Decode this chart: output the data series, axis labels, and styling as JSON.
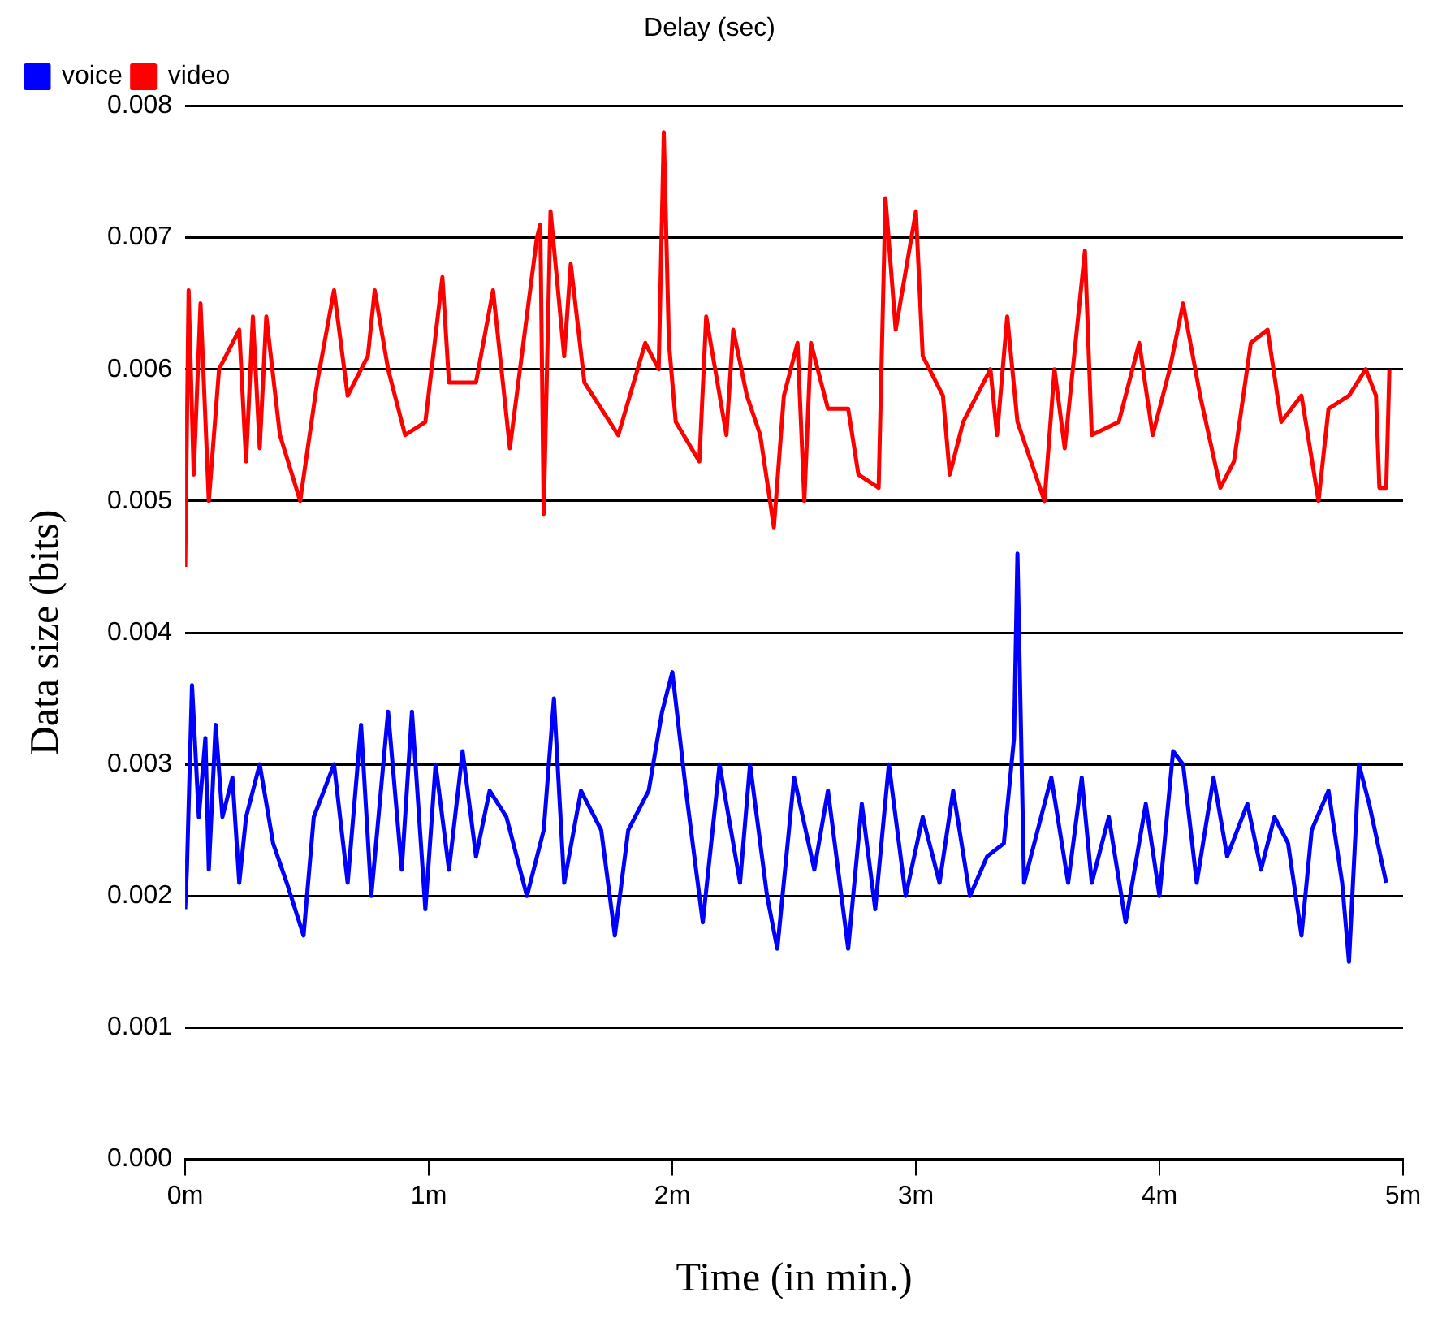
{
  "chart_data": {
    "type": "line",
    "title": "Delay (sec)",
    "xlabel": "Time (in min.)",
    "ylabel": "Data size (bits)",
    "xlim": [
      0,
      5
    ],
    "xticks": [
      {
        "value": 0,
        "label": "0m"
      },
      {
        "value": 1,
        "label": "1m"
      },
      {
        "value": 2,
        "label": "2m"
      },
      {
        "value": 3,
        "label": "3m"
      },
      {
        "value": 4,
        "label": "4m"
      },
      {
        "value": 5,
        "label": "5m"
      }
    ],
    "ylim": [
      0,
      0.008
    ],
    "yticks": [
      {
        "value": 0,
        "label": "0.000"
      },
      {
        "value": 0.001,
        "label": "0.001"
      },
      {
        "value": 0.002,
        "label": "0.002"
      },
      {
        "value": 0.003,
        "label": "0.003"
      },
      {
        "value": 0.004,
        "label": "0.004"
      },
      {
        "value": 0.005,
        "label": "0.005"
      },
      {
        "value": 0.006,
        "label": "0.006"
      },
      {
        "value": 0.007,
        "label": "0.007"
      },
      {
        "value": 0.008,
        "label": "0.008"
      }
    ],
    "grid": "y",
    "legend": "top left",
    "series": [
      {
        "name": "voice",
        "color": "#0000ff",
        "x": [
          0,
          0.007,
          0.028,
          0.056,
          0.083,
          0.097,
          0.125,
          0.153,
          0.194,
          0.222,
          0.25,
          0.306,
          0.361,
          0.417,
          0.486,
          0.528,
          0.611,
          0.667,
          0.722,
          0.764,
          0.833,
          0.889,
          0.931,
          0.986,
          1.028,
          1.083,
          1.139,
          1.194,
          1.25,
          1.319,
          1.403,
          1.472,
          1.514,
          1.556,
          1.625,
          1.708,
          1.764,
          1.819,
          1.903,
          1.958,
          2.0,
          2.056,
          2.125,
          2.194,
          2.278,
          2.319,
          2.389,
          2.431,
          2.5,
          2.583,
          2.639,
          2.722,
          2.778,
          2.833,
          2.889,
          2.958,
          3.028,
          3.097,
          3.153,
          3.222,
          3.292,
          3.361,
          3.403,
          3.417,
          3.444,
          3.5,
          3.556,
          3.625,
          3.681,
          3.722,
          3.792,
          3.861,
          3.944,
          4.0,
          4.056,
          4.097,
          4.153,
          4.222,
          4.278,
          4.361,
          4.417,
          4.472,
          4.528,
          4.583,
          4.625,
          4.694,
          4.75,
          4.778,
          4.819,
          4.861,
          4.931
        ],
        "values": [
          0.0019,
          0.0022,
          0.0036,
          0.0026,
          0.0032,
          0.0022,
          0.0033,
          0.0026,
          0.0029,
          0.0021,
          0.0026,
          0.003,
          0.0024,
          0.0021,
          0.0017,
          0.0026,
          0.003,
          0.0021,
          0.0033,
          0.002,
          0.0034,
          0.0022,
          0.0034,
          0.0019,
          0.003,
          0.0022,
          0.0031,
          0.0023,
          0.0028,
          0.0026,
          0.002,
          0.0025,
          0.0035,
          0.0021,
          0.0028,
          0.0025,
          0.0017,
          0.0025,
          0.0028,
          0.0034,
          0.0037,
          0.0028,
          0.0018,
          0.003,
          0.0021,
          0.003,
          0.002,
          0.0016,
          0.0029,
          0.0022,
          0.0028,
          0.0016,
          0.0027,
          0.0019,
          0.003,
          0.002,
          0.0026,
          0.0021,
          0.0028,
          0.002,
          0.0023,
          0.0024,
          0.0032,
          0.0046,
          0.0021,
          0.0025,
          0.0029,
          0.0021,
          0.0029,
          0.0021,
          0.0026,
          0.0018,
          0.0027,
          0.002,
          0.0031,
          0.003,
          0.0021,
          0.0029,
          0.0023,
          0.0027,
          0.0022,
          0.0026,
          0.0024,
          0.0017,
          0.0025,
          0.0028,
          0.0021,
          0.0015,
          0.003,
          0.0027,
          0.0021
        ]
      },
      {
        "name": "video",
        "color": "#ff0000",
        "x": [
          0,
          0.014,
          0.035,
          0.063,
          0.097,
          0.139,
          0.222,
          0.25,
          0.278,
          0.306,
          0.333,
          0.389,
          0.472,
          0.542,
          0.611,
          0.667,
          0.75,
          0.778,
          0.833,
          0.903,
          0.986,
          1.056,
          1.083,
          1.194,
          1.264,
          1.333,
          1.444,
          1.458,
          1.472,
          1.5,
          1.556,
          1.583,
          1.639,
          1.778,
          1.889,
          1.944,
          1.965,
          1.986,
          2.014,
          2.111,
          2.139,
          2.222,
          2.25,
          2.306,
          2.361,
          2.417,
          2.458,
          2.514,
          2.542,
          2.569,
          2.639,
          2.722,
          2.764,
          2.847,
          2.875,
          2.917,
          3.0,
          3.028,
          3.111,
          3.139,
          3.194,
          3.306,
          3.333,
          3.375,
          3.417,
          3.528,
          3.569,
          3.611,
          3.694,
          3.722,
          3.833,
          3.917,
          3.972,
          4.042,
          4.097,
          4.167,
          4.25,
          4.306,
          4.375,
          4.444,
          4.5,
          4.583,
          4.653,
          4.694,
          4.778,
          4.847,
          4.889,
          4.903,
          4.931,
          4.944
        ],
        "values": [
          0.0045,
          0.0066,
          0.0052,
          0.0065,
          0.005,
          0.006,
          0.0063,
          0.0053,
          0.0064,
          0.0054,
          0.0064,
          0.0055,
          0.005,
          0.0059,
          0.0066,
          0.0058,
          0.0061,
          0.0066,
          0.006,
          0.0055,
          0.0056,
          0.0067,
          0.0059,
          0.0059,
          0.0066,
          0.0054,
          0.007,
          0.0071,
          0.0049,
          0.0072,
          0.0061,
          0.0068,
          0.0059,
          0.0055,
          0.0062,
          0.006,
          0.0078,
          0.0062,
          0.0056,
          0.0053,
          0.0064,
          0.0055,
          0.0063,
          0.0058,
          0.0055,
          0.0048,
          0.0058,
          0.0062,
          0.005,
          0.0062,
          0.0057,
          0.0057,
          0.0052,
          0.0051,
          0.0073,
          0.0063,
          0.0072,
          0.0061,
          0.0058,
          0.0052,
          0.0056,
          0.006,
          0.0055,
          0.0064,
          0.0056,
          0.005,
          0.006,
          0.0054,
          0.0069,
          0.0055,
          0.0056,
          0.0062,
          0.0055,
          0.006,
          0.0065,
          0.0058,
          0.0051,
          0.0053,
          0.0062,
          0.0063,
          0.0056,
          0.0058,
          0.005,
          0.0057,
          0.0058,
          0.006,
          0.0058,
          0.0051,
          0.0051,
          0.006
        ]
      }
    ]
  }
}
